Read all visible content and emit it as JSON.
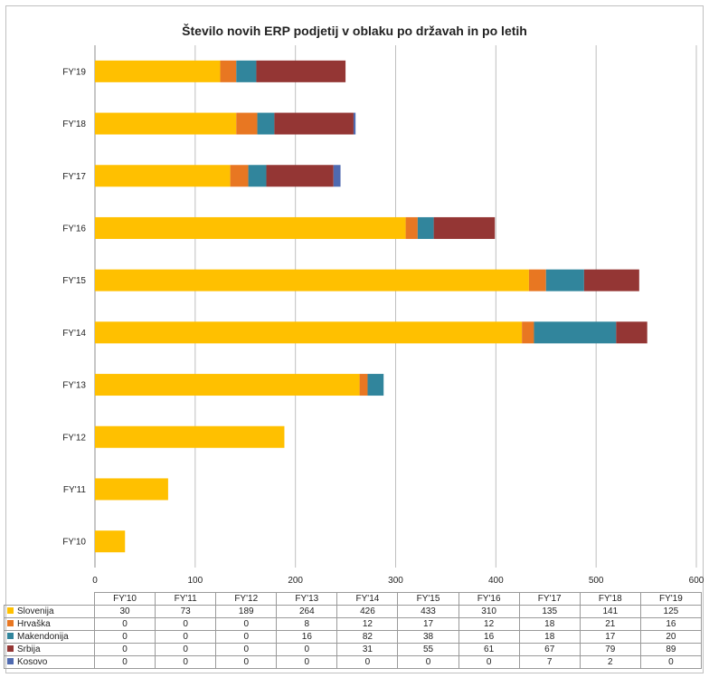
{
  "chart_data": {
    "type": "bar",
    "orientation": "horizontal",
    "stacked": true,
    "title": "Število novih ERP podjetij v oblaku po državah in po letih",
    "categories": [
      "FY'10",
      "FY'11",
      "FY'12",
      "FY'13",
      "FY'14",
      "FY'15",
      "FY'16",
      "FY'17",
      "FY'18",
      "FY'19"
    ],
    "series": [
      {
        "name": "Slovenija",
        "color": "#FFC000",
        "values": [
          30,
          73,
          189,
          264,
          426,
          433,
          310,
          135,
          141,
          125
        ]
      },
      {
        "name": "Hrvaška",
        "color": "#E87722",
        "values": [
          0,
          0,
          0,
          8,
          12,
          17,
          12,
          18,
          21,
          16
        ]
      },
      {
        "name": "Makendonija",
        "color": "#31859C",
        "values": [
          0,
          0,
          0,
          16,
          82,
          38,
          16,
          18,
          17,
          20
        ]
      },
      {
        "name": "Srbija",
        "color": "#943634",
        "values": [
          0,
          0,
          0,
          0,
          31,
          55,
          61,
          67,
          79,
          89
        ]
      },
      {
        "name": "Kosovo",
        "color": "#4F6AB0",
        "values": [
          0,
          0,
          0,
          0,
          0,
          0,
          0,
          7,
          2,
          0
        ]
      }
    ],
    "xlim": [
      0,
      600
    ],
    "ticks": [
      0,
      100,
      200,
      300,
      400,
      500,
      600
    ],
    "grid": true,
    "legend": "data table below chart"
  }
}
